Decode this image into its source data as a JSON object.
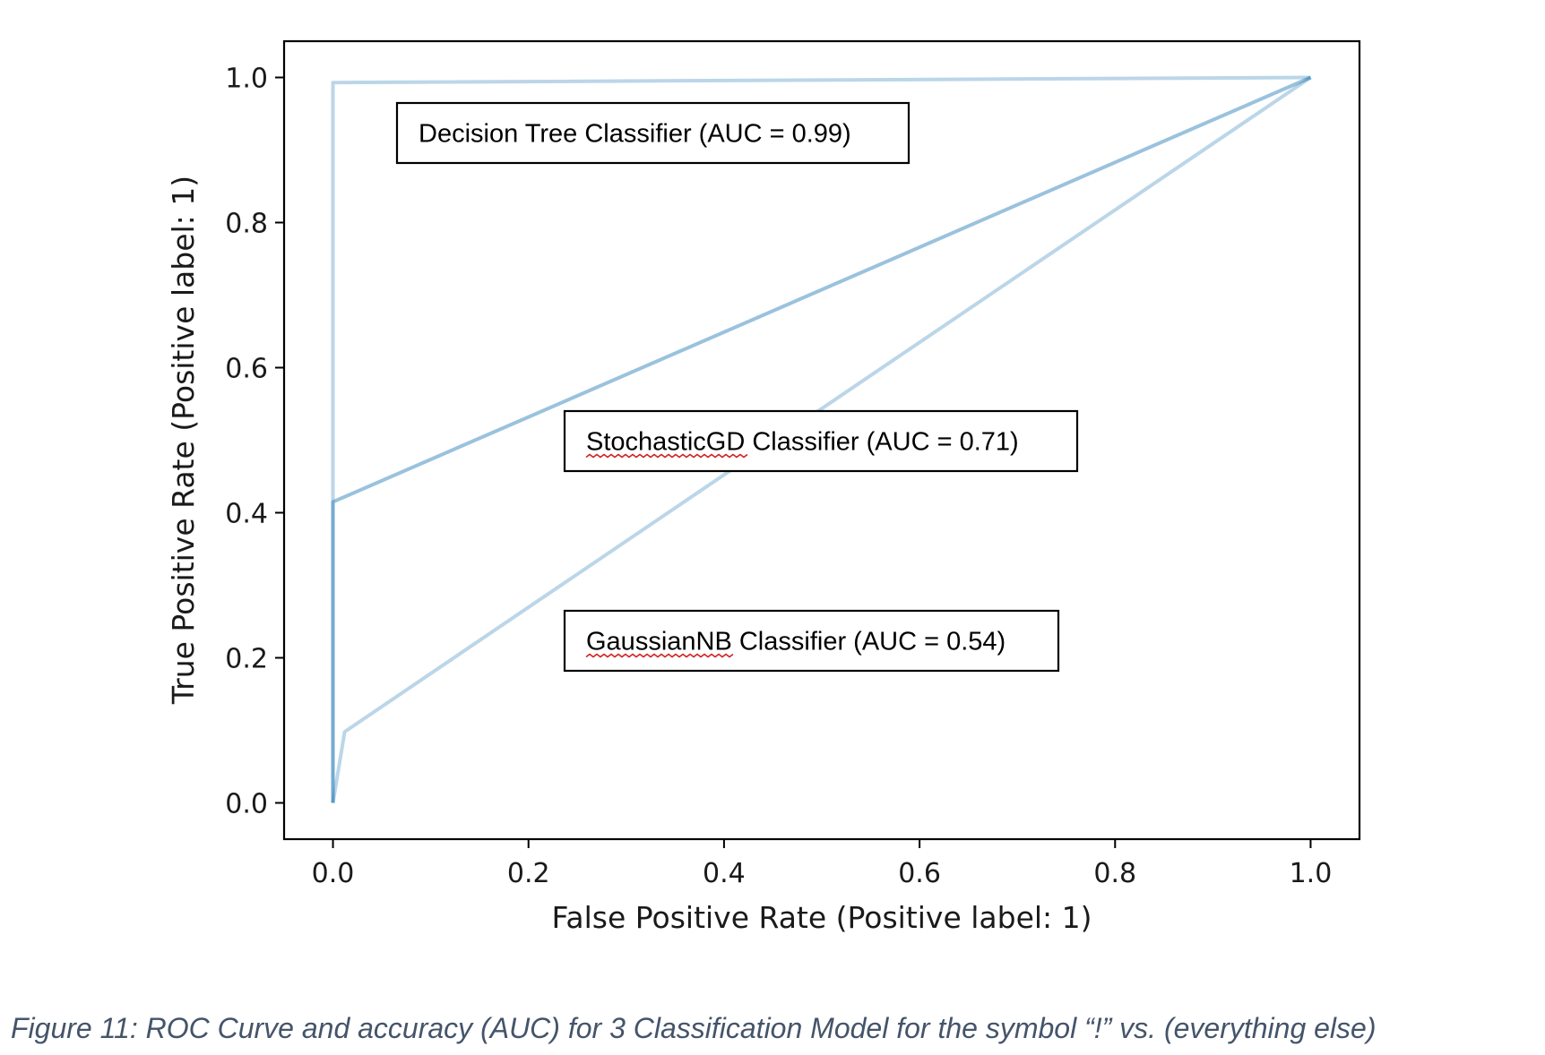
{
  "chart_data": {
    "type": "line",
    "title": "",
    "xlabel": "False Positive Rate (Positive label: 1)",
    "ylabel": "True Positive Rate (Positive label: 1)",
    "xlim": [
      -0.05,
      1.05
    ],
    "ylim": [
      -0.05,
      1.05
    ],
    "xticks": [
      "0.0",
      "0.2",
      "0.4",
      "0.6",
      "0.8",
      "1.0"
    ],
    "yticks": [
      "0.0",
      "0.2",
      "0.4",
      "0.6",
      "0.8",
      "1.0"
    ],
    "grid": false,
    "line_color": "#1f77b4",
    "series": [
      {
        "x": [
          0.0,
          0.0,
          1.0
        ],
        "y": [
          0.0,
          0.993,
          1.0
        ],
        "opacity": 0.3
      },
      {
        "x": [
          0.0,
          0.0,
          1.0
        ],
        "y": [
          0.0,
          0.415,
          1.0
        ],
        "opacity": 0.45
      },
      {
        "x": [
          0.0,
          0.012,
          1.0
        ],
        "y": [
          0.0,
          0.098,
          1.0
        ],
        "opacity": 0.3
      }
    ],
    "annotations": [
      {
        "text": "Decision Tree Classifier (AUC = 0.99)",
        "underline": ""
      },
      {
        "text": "StochasticGD Classifier (AUC = 0.71)",
        "underline": "StochasticGD"
      },
      {
        "text": "GaussianNB Classifier (AUC = 0.54)",
        "underline": "GaussianNB"
      }
    ]
  },
  "caption": "Figure 11: ROC Curve and accuracy (AUC) for 3 Classification Model for the symbol “!” vs. (everything else)"
}
